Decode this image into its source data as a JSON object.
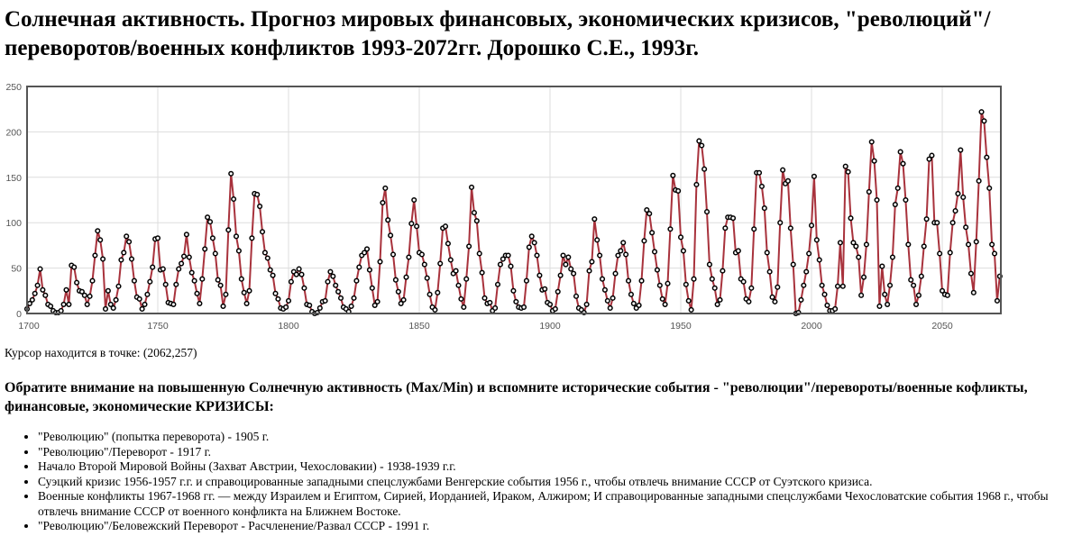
{
  "title": "Солнечная активность. Прогноз мировых финансовых, экономических кризисов, \"революций\"/переворотов/военных конфликтов 1993-2072гг. Дорошко С.Е., 1993г.",
  "cursor_text": "Курсор находится в точке: (2062,257)",
  "note": "Обратите внимание на повышенную Солнечную активность (Max/Min) и вспомните исторические события - \"революции\"/перевороты/военные кофликты, финансовые, экономические КРИЗИСЫ:",
  "events": [
    "\"Революцию\" (попытка переворота) - 1905 г.",
    "\"Революцию\"/Переворот - 1917 г.",
    "Начало Второй Мировой Войны (Захват Австрии, Чехословакии) - 1938-1939 г.г.",
    "Суэцкий кризис 1956-1957 г.г. и справоцированные западными спецслужбами Венгерские события 1956 г., чтобы отвлечь внимание СССР от Суэтского кризиса.",
    "Военные конфликты 1967-1968 гг. — между Израилем и Египтом, Сирией, Иорданией, Ираком, Алжиром; И справоцированные западными спецслужбами Чехословатские события 1968 г., чтобы отвлечь внимание СССР от военного конфликта на Ближнем Востоке.",
    "\"Революцию\"/Беловежский Переворот - Расчленение/Развал СССР - 1991 г."
  ],
  "colors": {
    "line": "#a8323c",
    "marker_fill": "#ffffff",
    "marker_stroke": "#000000",
    "grid": "#dddddd",
    "frame": "#555555"
  },
  "chart_data": {
    "type": "line",
    "title": "",
    "xlabel": "",
    "ylabel": "",
    "xlim": [
      1700,
      2072
    ],
    "ylim": [
      0,
      250
    ],
    "x_ticks": [
      "1700",
      "1750",
      "1800",
      "1850",
      "1900",
      "1950",
      "2000",
      "2050"
    ],
    "y_ticks": [
      "0",
      "50",
      "100",
      "150",
      "200",
      "250"
    ],
    "grid": true,
    "x_start": 1700,
    "values": [
      5,
      11,
      15,
      22,
      31,
      49,
      26,
      20,
      10,
      8,
      3,
      1,
      1,
      3,
      10,
      26,
      10,
      53,
      51,
      34,
      25,
      24,
      20,
      10,
      19,
      36,
      64,
      91,
      81,
      60,
      5,
      25,
      10,
      6,
      15,
      30,
      59,
      67,
      85,
      79,
      60,
      36,
      18,
      16,
      5,
      10,
      21,
      35,
      51,
      82,
      83,
      48,
      49,
      32,
      12,
      11,
      10,
      32,
      49,
      55,
      63,
      87,
      62,
      45,
      36,
      22,
      11,
      38,
      71,
      106,
      101,
      83,
      66,
      37,
      31,
      8,
      21,
      92,
      154,
      126,
      85,
      69,
      38,
      23,
      11,
      25,
      83,
      132,
      131,
      118,
      90,
      67,
      61,
      48,
      42,
      22,
      16,
      6,
      5,
      7,
      14,
      35,
      46,
      43,
      49,
      43,
      28,
      10,
      9,
      2,
      0,
      1,
      6,
      13,
      14,
      35,
      46,
      41,
      31,
      24,
      17,
      7,
      5,
      2,
      8,
      17,
      36,
      51,
      64,
      67,
      71,
      48,
      28,
      9,
      13,
      57,
      122,
      138,
      103,
      86,
      65,
      37,
      24,
      11,
      15,
      40,
      62,
      99,
      125,
      96,
      67,
      65,
      54,
      39,
      21,
      7,
      4,
      23,
      55,
      94,
      96,
      77,
      59,
      44,
      47,
      31,
      16,
      7,
      38,
      74,
      139,
      111,
      102,
      66,
      45,
      17,
      11,
      12,
      3,
      6,
      32,
      54,
      60,
      64,
      64,
      52,
      25,
      13,
      7,
      6,
      7,
      36,
      73,
      85,
      78,
      64,
      42,
      26,
      27,
      12,
      10,
      3,
      5,
      24,
      42,
      64,
      54,
      62,
      49,
      44,
      19,
      6,
      4,
      1,
      10,
      47,
      57,
      104,
      81,
      64,
      38,
      26,
      14,
      6,
      17,
      44,
      64,
      69,
      78,
      65,
      36,
      21,
      11,
      6,
      9,
      36,
      80,
      114,
      110,
      89,
      68,
      48,
      31,
      16,
      10,
      33,
      93,
      152,
      136,
      135,
      84,
      69,
      32,
      14,
      4,
      38,
      142,
      190,
      185,
      159,
      112,
      54,
      38,
      28,
      10,
      15,
      47,
      94,
      106,
      106,
      105,
      67,
      69,
      38,
      35,
      16,
      13,
      28,
      93,
      155,
      155,
      140,
      116,
      67,
      46,
      18,
      13,
      29,
      100,
      158,
      143,
      146,
      94,
      54,
      0,
      1,
      15,
      31,
      46,
      66,
      97,
      151,
      81,
      59,
      31,
      21,
      9,
      3,
      3,
      5,
      30,
      78,
      30,
      162,
      156,
      105,
      78,
      74,
      62,
      20,
      40,
      76,
      134,
      189,
      168,
      125,
      8,
      52,
      21,
      10,
      31,
      62,
      120,
      138,
      178,
      165,
      125,
      76,
      37,
      31,
      10,
      20,
      41,
      74,
      104,
      170,
      174,
      100,
      100,
      66,
      25,
      21,
      20,
      67,
      100,
      113,
      132,
      180,
      128,
      95,
      76,
      44,
      23,
      79,
      146,
      222,
      212,
      172,
      138,
      76,
      66,
      14,
      41
    ]
  }
}
